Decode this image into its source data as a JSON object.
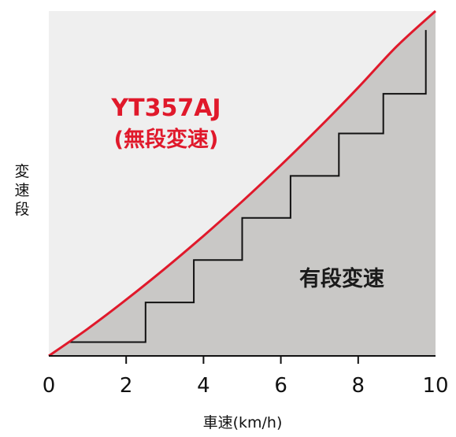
{
  "colors": {
    "background_area": "#efefef",
    "fill_gray": "#c9c8c6",
    "curve_red": "#e0192b",
    "step_line": "#111111",
    "axis": "#111111"
  },
  "chart_data": {
    "type": "line",
    "title": "",
    "xlabel": "車速(km/h)",
    "ylabel": "変速段",
    "xlim": [
      0,
      10
    ],
    "ylim": [
      0,
      10
    ],
    "x_ticks": [
      "0",
      "2",
      "4",
      "6",
      "8",
      "10"
    ],
    "grid": false,
    "series": [
      {
        "name": "YT357AJ",
        "subname": "(無段変速)",
        "kind": "curve",
        "x": [
          0,
          1,
          2,
          3,
          4,
          5,
          6,
          7,
          8,
          9,
          10
        ],
        "y": [
          0,
          0.78,
          1.63,
          2.53,
          3.48,
          4.48,
          5.53,
          6.63,
          7.78,
          8.98,
          10.0
        ]
      },
      {
        "name": "有段変速",
        "kind": "step",
        "x": [
          0.5,
          2.5,
          2.5,
          3.75,
          3.75,
          5.0,
          5.0,
          6.25,
          6.25,
          7.5,
          7.5,
          8.65,
          8.65,
          9.75,
          9.75
        ],
        "y": [
          0.4,
          0.4,
          1.55,
          1.55,
          2.78,
          2.78,
          4.0,
          4.0,
          5.22,
          5.22,
          6.45,
          6.45,
          7.6,
          7.6,
          9.45
        ]
      }
    ]
  }
}
